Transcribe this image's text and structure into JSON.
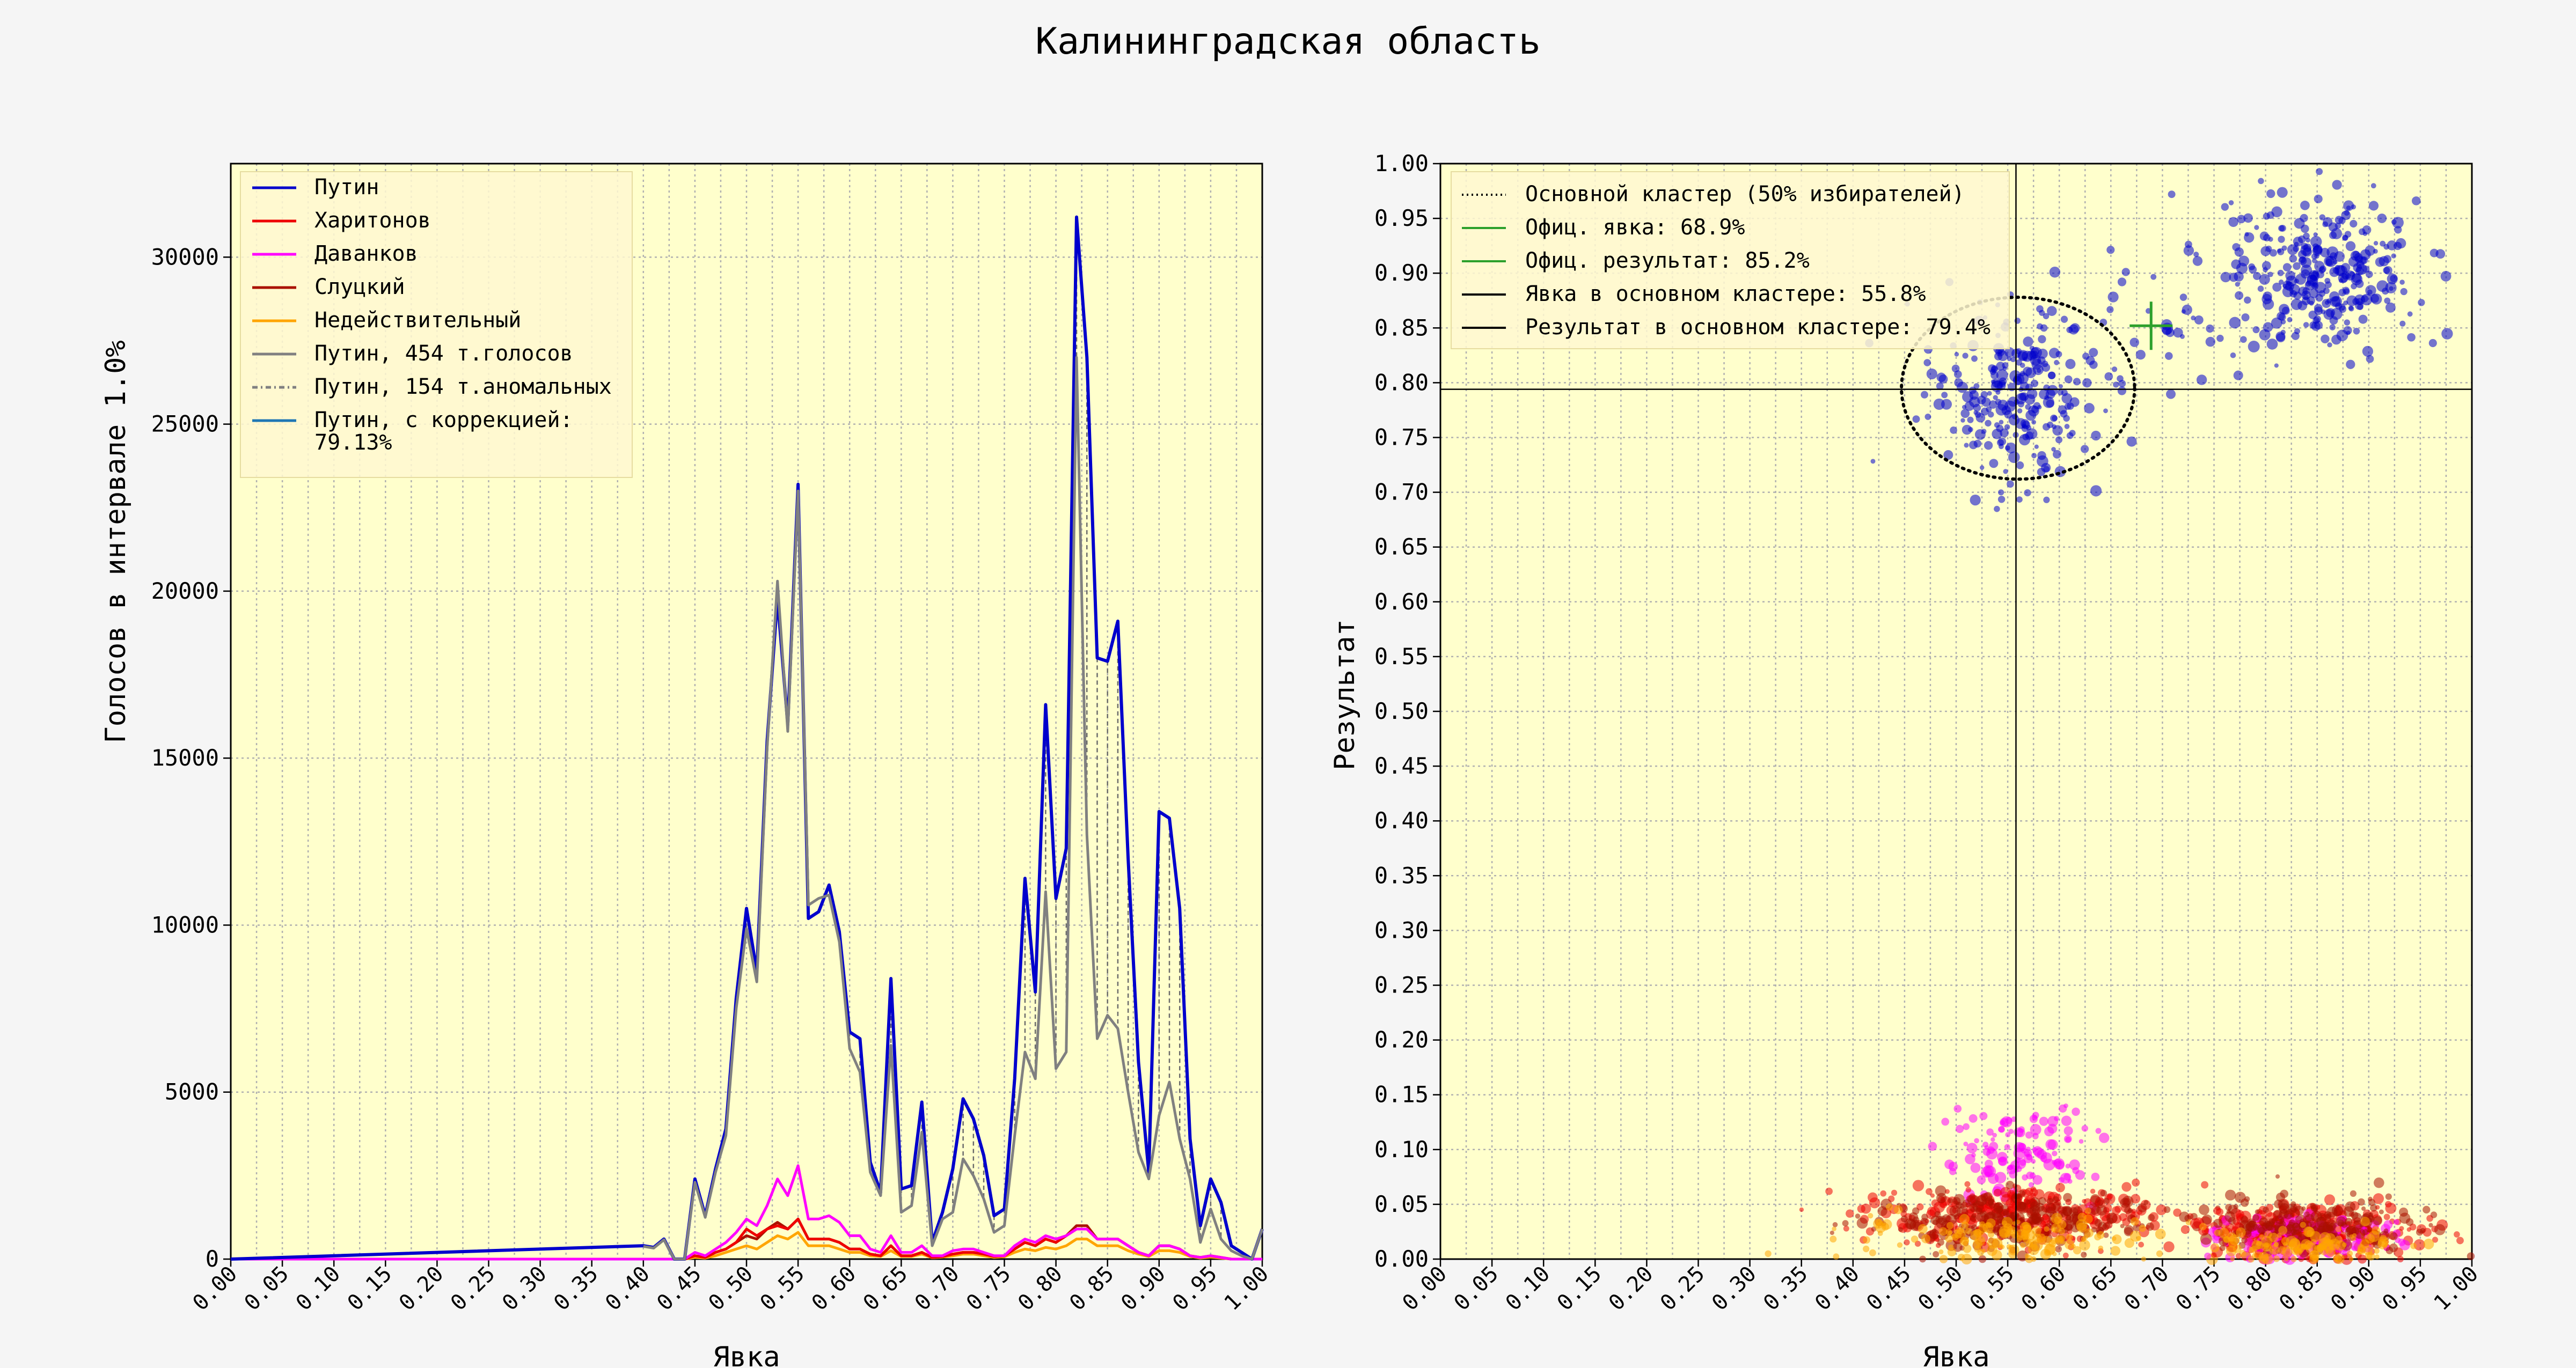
{
  "title": "Калининградская область",
  "colors": {
    "background": "#f5f5f5",
    "plot_bg": "#ffffcc",
    "putin": "#0000cc",
    "kharitonov": "#ee0000",
    "davankov": "#ff00ff",
    "slutsky": "#aa1100",
    "invalid": "#ffa500",
    "putin_total": "#808080",
    "putin_corrected": "#1f77b4",
    "official_marker": "#2ca02c"
  },
  "chart_data": [
    {
      "type": "line",
      "xlabel": "Явка",
      "ylabel": "Голосов в интервале 1.0%",
      "xlim": [
        0,
        1
      ],
      "ylim": [
        0,
        32800
      ],
      "xticks": [
        "0.00",
        "0.05",
        "0.10",
        "0.15",
        "0.20",
        "0.25",
        "0.30",
        "0.35",
        "0.40",
        "0.45",
        "0.50",
        "0.55",
        "0.60",
        "0.65",
        "0.70",
        "0.75",
        "0.80",
        "0.85",
        "0.90",
        "0.95",
        "1.00"
      ],
      "yticks": [
        "0",
        "5000",
        "10000",
        "15000",
        "20000",
        "25000",
        "30000"
      ],
      "grid": true,
      "legend_position": "upper-left",
      "legend": [
        "Путин",
        "Харитонов",
        "Даванков",
        "Слуцкий",
        "Недействительный",
        "Путин, 454 т.голосов",
        "Путин, 154 т.аномальных",
        "Путин, с коррекцией:\n 79.13%"
      ],
      "x": [
        0.4,
        0.41,
        0.42,
        0.43,
        0.44,
        0.45,
        0.46,
        0.47,
        0.48,
        0.49,
        0.5,
        0.51,
        0.52,
        0.53,
        0.54,
        0.55,
        0.56,
        0.57,
        0.58,
        0.59,
        0.6,
        0.61,
        0.62,
        0.63,
        0.64,
        0.65,
        0.66,
        0.67,
        0.68,
        0.69,
        0.7,
        0.71,
        0.72,
        0.73,
        0.74,
        0.75,
        0.76,
        0.77,
        0.78,
        0.79,
        0.8,
        0.81,
        0.82,
        0.83,
        0.84,
        0.85,
        0.86,
        0.87,
        0.88,
        0.89,
        0.9,
        0.91,
        0.92,
        0.93,
        0.94,
        0.95,
        0.96,
        0.97,
        0.98,
        0.99,
        1.0
      ],
      "series": [
        {
          "name": "Путин",
          "values": [
            400,
            350,
            600,
            0,
            0,
            2400,
            1300,
            2700,
            3900,
            7800,
            10500,
            8600,
            15500,
            19800,
            16000,
            23200,
            10200,
            10400,
            11200,
            9800,
            6800,
            6600,
            2900,
            2000,
            8400,
            2100,
            2200,
            4700,
            500,
            1400,
            2700,
            4800,
            4200,
            3100,
            1300,
            1500,
            5400,
            11400,
            8000,
            16600,
            10800,
            12300,
            31200,
            27000,
            18000,
            17900,
            19100,
            12000,
            5900,
            2600,
            13400,
            13200,
            10500,
            3600,
            1000,
            2400,
            1700,
            400,
            200,
            0,
            900
          ]
        },
        {
          "name": "Харитонов",
          "values": [
            0,
            0,
            0,
            0,
            0,
            100,
            50,
            200,
            300,
            500,
            900,
            700,
            900,
            1000,
            900,
            1200,
            600,
            600,
            600,
            500,
            300,
            300,
            150,
            100,
            400,
            100,
            100,
            200,
            50,
            80,
            150,
            200,
            200,
            150,
            80,
            100,
            300,
            500,
            400,
            600,
            500,
            700,
            900,
            900,
            600,
            600,
            600,
            400,
            200,
            100,
            400,
            400,
            300,
            100,
            50,
            100,
            50,
            0,
            0,
            0,
            0
          ]
        },
        {
          "name": "Даванков",
          "values": [
            0,
            0,
            0,
            0,
            0,
            200,
            100,
            300,
            500,
            800,
            1200,
            1000,
            1600,
            2400,
            1900,
            2800,
            1200,
            1200,
            1300,
            1100,
            700,
            700,
            300,
            200,
            700,
            200,
            200,
            400,
            100,
            100,
            250,
            300,
            300,
            200,
            100,
            100,
            400,
            600,
            500,
            700,
            600,
            700,
            900,
            900,
            600,
            600,
            600,
            400,
            200,
            100,
            400,
            400,
            300,
            100,
            50,
            100,
            50,
            0,
            0,
            0,
            0
          ]
        },
        {
          "name": "Слуцкий",
          "values": [
            0,
            0,
            0,
            0,
            0,
            100,
            50,
            200,
            300,
            500,
            700,
            600,
            900,
            1100,
            900,
            1200,
            600,
            600,
            600,
            500,
            300,
            300,
            150,
            100,
            400,
            100,
            100,
            200,
            50,
            80,
            150,
            200,
            200,
            150,
            80,
            100,
            300,
            500,
            400,
            600,
            500,
            700,
            1000,
            1000,
            600,
            600,
            600,
            400,
            200,
            100,
            400,
            400,
            300,
            100,
            50,
            100,
            50,
            0,
            0,
            0,
            0
          ]
        },
        {
          "name": "Недействительный",
          "values": [
            0,
            0,
            0,
            0,
            0,
            50,
            30,
            100,
            200,
            300,
            400,
            300,
            500,
            700,
            600,
            800,
            400,
            400,
            400,
            300,
            200,
            200,
            100,
            80,
            250,
            80,
            80,
            150,
            40,
            60,
            100,
            150,
            150,
            100,
            50,
            70,
            200,
            300,
            250,
            350,
            300,
            400,
            600,
            600,
            400,
            400,
            400,
            250,
            150,
            80,
            250,
            250,
            200,
            80,
            30,
            60,
            30,
            0,
            0,
            0,
            0
          ]
        },
        {
          "name": "Путин, 454 т.голосов",
          "values": [
            380,
            330,
            580,
            0,
            0,
            2300,
            1250,
            2600,
            3700,
            7500,
            9900,
            8300,
            15300,
            20300,
            15800,
            23000,
            10600,
            10800,
            10900,
            9500,
            6300,
            5600,
            2600,
            1900,
            6400,
            1400,
            1600,
            3800,
            400,
            1200,
            1400,
            3000,
            2500,
            1800,
            800,
            1000,
            3700,
            6200,
            5400,
            11000,
            5700,
            6200,
            27000,
            12700,
            6600,
            7300,
            6900,
            5000,
            3200,
            2400,
            4300,
            5300,
            3600,
            2400,
            500,
            1500,
            600,
            250,
            100,
            0,
            900
          ]
        },
        {
          "name": "Путин, 154 т.аномальных",
          "values": [
            0,
            0,
            0,
            0,
            0,
            0,
            0,
            0,
            0,
            0,
            0,
            0,
            0,
            0,
            0,
            0,
            0,
            0,
            0,
            0,
            0,
            0,
            0,
            0,
            0,
            0,
            0,
            0,
            0,
            0,
            0,
            0,
            0,
            0,
            0,
            0,
            0,
            0,
            0,
            0,
            0,
            0,
            0,
            0,
            0,
            0,
            0,
            0,
            0,
            0,
            0,
            0,
            0,
            0,
            0,
            0,
            0,
            0,
            0,
            0,
            0
          ]
        },
        {
          "name": "Путин, с коррекцией:\n 79.13%",
          "values": [
            0,
            0,
            0,
            0,
            0,
            0,
            0,
            0,
            0,
            0,
            0,
            0,
            0,
            0,
            0,
            0,
            0,
            0,
            0,
            0,
            0,
            0,
            0,
            0,
            0,
            0,
            0,
            0,
            0,
            0,
            0,
            0,
            0,
            0,
            0,
            0,
            0,
            0,
            0,
            0,
            0,
            0,
            0,
            0,
            0,
            0,
            0,
            0,
            0,
            0,
            0,
            0,
            0,
            0,
            0,
            0,
            0,
            0,
            0,
            0,
            0
          ]
        }
      ]
    },
    {
      "type": "scatter",
      "xlabel": "Явка",
      "ylabel": "Результат",
      "xlim": [
        0,
        1
      ],
      "ylim": [
        0,
        1
      ],
      "xticks": [
        "0.00",
        "0.05",
        "0.10",
        "0.15",
        "0.20",
        "0.25",
        "0.30",
        "0.35",
        "0.40",
        "0.45",
        "0.50",
        "0.55",
        "0.60",
        "0.65",
        "0.70",
        "0.75",
        "0.80",
        "0.85",
        "0.90",
        "0.95",
        "1.00"
      ],
      "yticks": [
        "0.00",
        "0.05",
        "0.10",
        "0.15",
        "0.20",
        "0.25",
        "0.30",
        "0.35",
        "0.40",
        "0.45",
        "0.50",
        "0.55",
        "0.60",
        "0.65",
        "0.70",
        "0.75",
        "0.80",
        "0.85",
        "0.90",
        "0.95",
        "1.00"
      ],
      "grid": true,
      "legend_position": "upper-left",
      "legend": [
        "Основной кластер (50% избирателей)",
        "Офиц. явка: 68.9%",
        "Офиц. результат: 85.2%",
        "Явка в основном кластере: 55.8%",
        "Результат в основном кластере: 79.4%"
      ],
      "official": {
        "turnout": 0.689,
        "result": 0.852
      },
      "main_cluster": {
        "turnout": 0.558,
        "result": 0.794,
        "ellipse_center": [
          0.56,
          0.795
        ],
        "ellipse_radius": [
          0.113,
          0.083
        ]
      },
      "clusters": [
        {
          "name": "Путин",
          "color": "#0000cc",
          "cx": 0.555,
          "cy": 0.79,
          "sx": 0.04,
          "sy": 0.04,
          "n": 260
        },
        {
          "name": "Путин",
          "color": "#0000cc",
          "cx": 0.855,
          "cy": 0.895,
          "sx": 0.045,
          "sy": 0.035,
          "n": 300
        },
        {
          "name": "Путин",
          "color": "#0000cc",
          "cx": 0.72,
          "cy": 0.88,
          "sx": 0.05,
          "sy": 0.04,
          "n": 40
        },
        {
          "name": "Даванков",
          "color": "#ff00ff",
          "cx": 0.56,
          "cy": 0.095,
          "sx": 0.035,
          "sy": 0.022,
          "n": 130
        },
        {
          "name": "Харитонов",
          "color": "#ee0000",
          "cx": 0.56,
          "cy": 0.04,
          "sx": 0.07,
          "sy": 0.013,
          "n": 300
        },
        {
          "name": "Слуцкий",
          "color": "#aa1100",
          "cx": 0.55,
          "cy": 0.035,
          "sx": 0.07,
          "sy": 0.012,
          "n": 250
        },
        {
          "name": "Недействительный",
          "color": "#ffa500",
          "cx": 0.55,
          "cy": 0.02,
          "sx": 0.07,
          "sy": 0.01,
          "n": 150
        },
        {
          "name": "Харитонов",
          "color": "#ee0000",
          "cx": 0.84,
          "cy": 0.025,
          "sx": 0.05,
          "sy": 0.012,
          "n": 320
        },
        {
          "name": "Даванков",
          "color": "#ff00ff",
          "cx": 0.84,
          "cy": 0.02,
          "sx": 0.045,
          "sy": 0.01,
          "n": 130
        },
        {
          "name": "Слуцкий",
          "color": "#aa1100",
          "cx": 0.84,
          "cy": 0.03,
          "sx": 0.05,
          "sy": 0.012,
          "n": 200
        },
        {
          "name": "Недействительный",
          "color": "#ffa500",
          "cx": 0.84,
          "cy": 0.012,
          "sx": 0.05,
          "sy": 0.008,
          "n": 120
        }
      ]
    }
  ]
}
